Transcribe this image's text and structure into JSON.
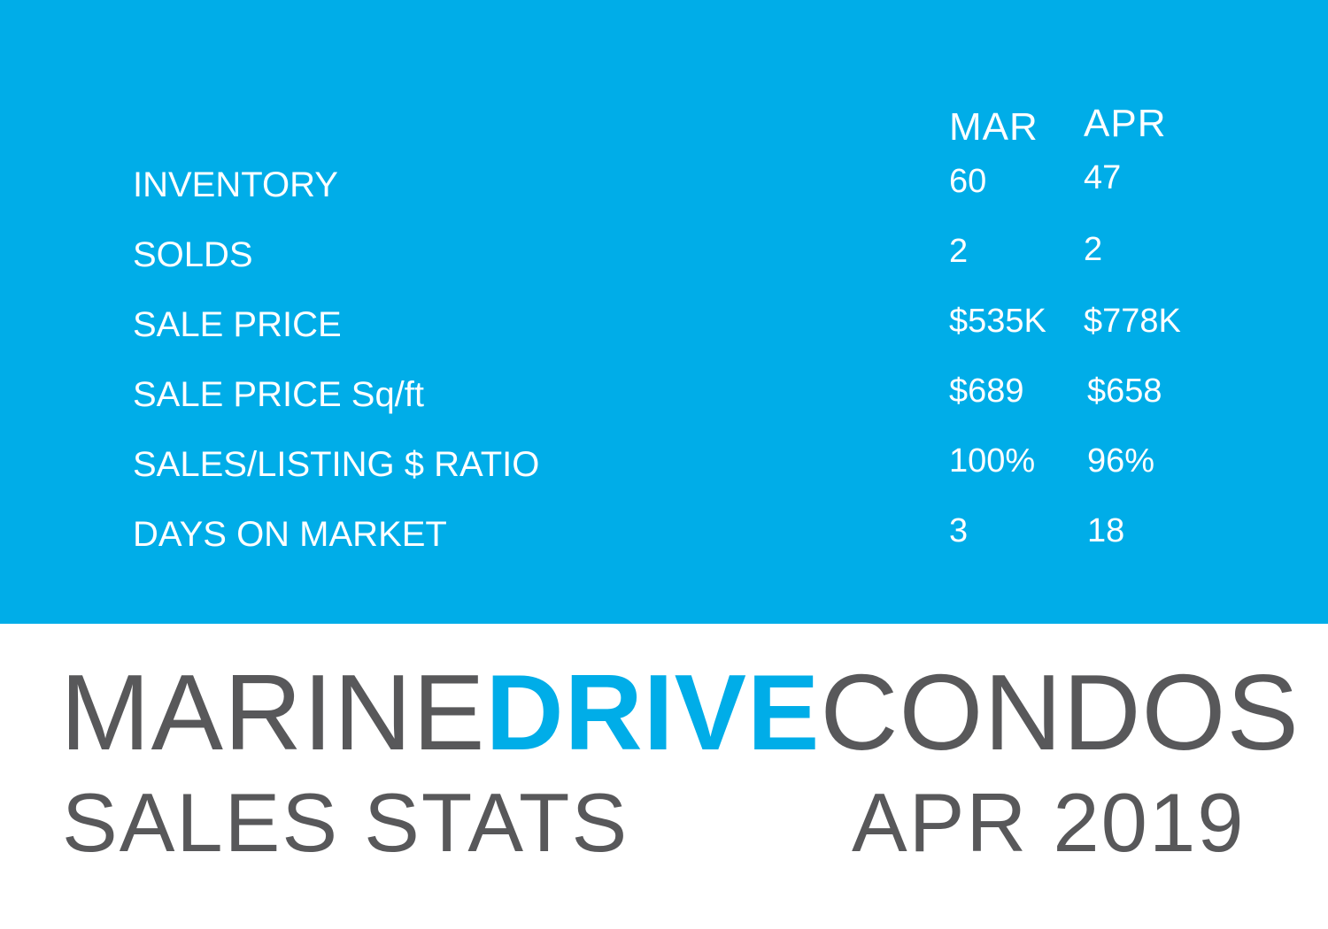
{
  "columns": {
    "prev": "MAR",
    "curr": "APR"
  },
  "rows": [
    {
      "label": "INVENTORY",
      "mar": "60",
      "apr": "47"
    },
    {
      "label": "SOLDS",
      "mar": "2",
      "apr": "2"
    },
    {
      "label": "SALE PRICE",
      "mar": "$535K",
      "apr": "$778K"
    },
    {
      "label": "SALE PRICE Sq/ft",
      "mar": "$689",
      "apr": "$658"
    },
    {
      "label": "SALES/LISTING $ RATIO",
      "mar": "100%",
      "apr": "96%"
    },
    {
      "label": "DAYS ON MARKET",
      "mar": "3",
      "apr": "18"
    }
  ],
  "brand": {
    "part1": "MARINE",
    "part2": "DRIVE",
    "part3": "CONDOS"
  },
  "subtitle": {
    "left": "SALES STATS",
    "right": "APR 2019"
  },
  "colors": {
    "panel": "#00ade8",
    "brand_accent": "#00ade8",
    "brand_text": "#58585a"
  }
}
